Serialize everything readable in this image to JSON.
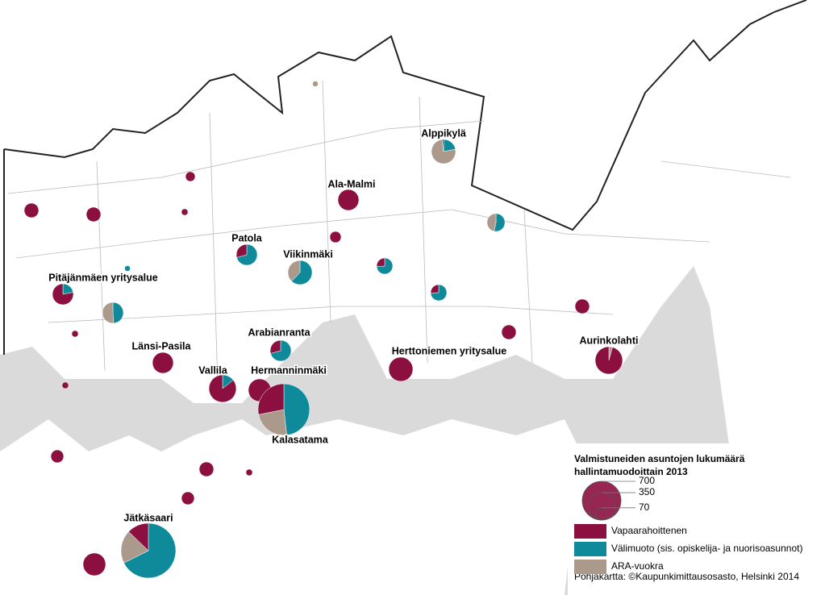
{
  "legend": {
    "title": "Valmistuneiden asuntojen lukumäärä hallintamuodoittain 2013",
    "size_values": [
      700,
      350,
      70
    ],
    "categories": [
      {
        "name": "Vapaarahoittenen",
        "color": "#8b0f3f"
      },
      {
        "name": "Välimuoto (sis. opiskelija- ja nuorisoasunnot)",
        "color": "#0e8a9a"
      },
      {
        "name": "ARA-vuokra",
        "color": "#ab9a8c"
      }
    ]
  },
  "areas": [
    {
      "label": "Alppikylä",
      "values": [
        5,
        60,
        210
      ]
    },
    {
      "label": "Ala-Malmi",
      "values": [
        205,
        0,
        0
      ]
    },
    {
      "label": "Patola",
      "values": [
        60,
        145,
        0
      ]
    },
    {
      "label": "Viikinmäki",
      "values": [
        0,
        170,
        103
      ]
    },
    {
      "label": "Pitäjänmäen yritysalue",
      "values": [
        160,
        45,
        0
      ]
    },
    {
      "label": "Länsi-Pasila",
      "values": [
        205,
        0,
        0
      ]
    },
    {
      "label": "Arabianranta",
      "values": [
        60,
        145,
        0
      ]
    },
    {
      "label": "Vallila",
      "values": [
        300,
        50,
        0
      ]
    },
    {
      "label": "Hermanninmäki",
      "values": [
        240,
        0,
        0
      ]
    },
    {
      "label": "Kalasatama",
      "values": [
        350,
        600,
        294
      ]
    },
    {
      "label": "Herttoniemen yritysalue",
      "values": [
        273,
        0,
        0
      ]
    },
    {
      "label": "Aurinkolahti",
      "values": [
        335,
        0,
        15
      ]
    },
    {
      "label": "Jätkäsaari",
      "values": [
        180,
        950,
        275
      ]
    },
    {
      "values": [
        0,
        100,
        105
      ]
    },
    {
      "values": [
        0,
        80,
        70
      ]
    },
    {
      "values": [
        31,
        90,
        0
      ]
    },
    {
      "values": [
        31,
        90,
        0
      ]
    },
    {
      "values": [
        240,
        0,
        0
      ]
    },
    {
      "values": [
        98,
        0,
        0
      ]
    },
    {
      "values": [
        98,
        0,
        0
      ]
    },
    {
      "values": [
        60,
        0,
        0
      ]
    },
    {
      "values": [
        98,
        0,
        0
      ]
    },
    {
      "values": [
        98,
        0,
        0
      ]
    },
    {
      "values": [
        98,
        0,
        0
      ]
    },
    {
      "values": [
        78,
        0,
        0
      ]
    },
    {
      "values": [
        78,
        0,
        0
      ]
    },
    {
      "values": [
        44,
        0,
        0
      ]
    },
    {
      "values": [
        20,
        0,
        0
      ]
    },
    {
      "values": [
        20,
        0,
        0
      ]
    },
    {
      "values": [
        20,
        0,
        0
      ]
    },
    {
      "values": [
        20,
        0,
        0
      ]
    },
    {
      "values": [
        0,
        0,
        15
      ]
    },
    {
      "values": [
        0,
        15,
        0
      ]
    }
  ],
  "source": "Pohjakartta: ©Kaupunkimittausosasto, Helsinki 2014"
}
